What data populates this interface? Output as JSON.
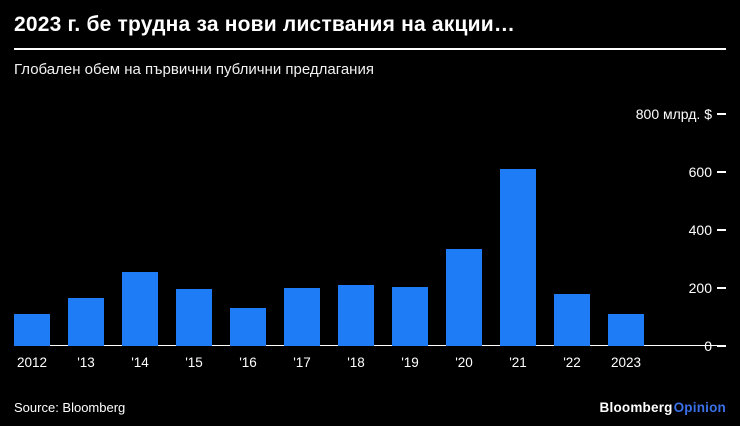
{
  "chart_data": {
    "type": "bar",
    "title": "2023 г. бе трудна за нови листвания на акции…",
    "subtitle": "Глобален обем на първични публични предлагания",
    "categories": [
      "2012",
      "'13",
      "'14",
      "'15",
      "'16",
      "'17",
      "'18",
      "'19",
      "'20",
      "'21",
      "'22",
      "2023"
    ],
    "values": [
      110,
      165,
      255,
      195,
      130,
      200,
      210,
      205,
      335,
      610,
      180,
      110
    ],
    "xlabel": "",
    "ylabel": "",
    "ylim": [
      0,
      800
    ],
    "ytick_values": [
      800,
      600,
      400,
      200,
      0
    ],
    "ytick_labels": [
      "800 млрд. $",
      "600",
      "400",
      "200",
      "0"
    ],
    "grid": "off",
    "legend_position": "none",
    "axis_side": "right"
  },
  "colors": {
    "background": "#000000",
    "text": "#ffffff",
    "bar": "#1e7df6",
    "opinion": "#3a70e8"
  },
  "footer": {
    "source": "Source: Bloomberg",
    "brand": {
      "name": "Bloomberg",
      "suffix": "Opinion"
    }
  }
}
